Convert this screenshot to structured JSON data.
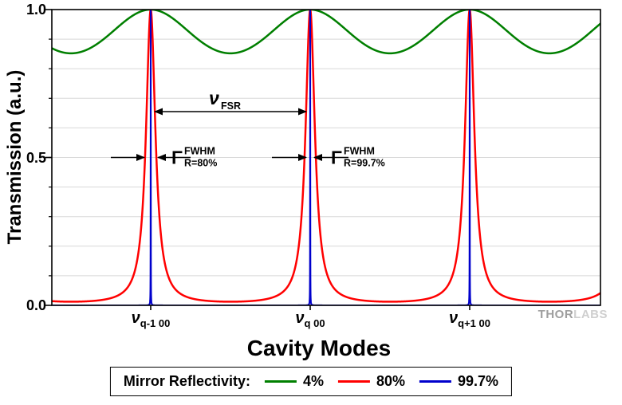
{
  "legend": {
    "title": "Mirror Reflectivity:"
  },
  "watermark": {
    "part1": "THOR",
    "part2": "LABS"
  },
  "chart_data": {
    "type": "line",
    "title": "",
    "xlabel": "Cavity Modes",
    "ylabel": "Transmission (a.u.)",
    "x_domain_fsr": [
      -0.62,
      2.82
    ],
    "ylim": [
      0,
      1
    ],
    "yticks": [
      "1.0",
      "0.5",
      "0.0"
    ],
    "ytick_values": [
      1.0,
      0.5,
      0.0
    ],
    "minor_grid_step": 0.1,
    "grid": "horizontal minor gridlines every 0.1",
    "legend_position": "bottom-center boxed",
    "model": "Fabry-Perot Airy transmission: T(x) = 1 / (1 + F*sin^2(pi*x)), F = 4R/(1-R)^2, x in units of nu_FSR, peaks at integer x (cavity modes)",
    "xticks": [
      {
        "base": "ν",
        "sub": "q-1 00",
        "x": 0
      },
      {
        "base": "ν",
        "sub": "q 00",
        "x": 1
      },
      {
        "base": "ν",
        "sub": "q+1 00",
        "x": 2
      }
    ],
    "series": [
      {
        "name": "4%",
        "reflectivity": 0.04,
        "color": "#007F00",
        "min_transmission": 0.852,
        "peak_transmission": 1.0
      },
      {
        "name": "80%",
        "reflectivity": 0.8,
        "color": "#FF0000",
        "min_transmission": 0.012,
        "peak_transmission": 1.0
      },
      {
        "name": "99.7%",
        "reflectivity": 0.997,
        "color": "#0000CC",
        "min_transmission": 0.0,
        "peak_transmission": 1.0
      }
    ],
    "annotations": {
      "fsr": {
        "base": "ν",
        "sub": "FSR",
        "from_peak": 0,
        "to_peak": 1,
        "y": 0.655
      },
      "fwhm_80": {
        "base": "Γ",
        "sup": "FWHM",
        "sub": "R=80%",
        "peak": 0,
        "y": 0.5
      },
      "fwhm_997": {
        "base": "Γ",
        "sup": "FWHM",
        "sub": "R=99.7%",
        "peak": 1,
        "y": 0.5
      }
    }
  }
}
